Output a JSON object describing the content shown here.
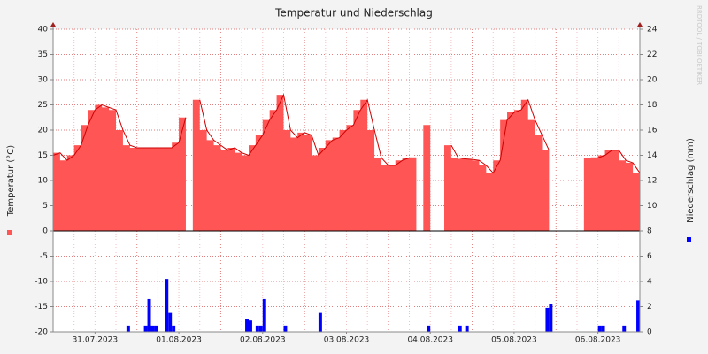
{
  "chart_data": {
    "type": "area",
    "title": "Temperatur und Niederschlag",
    "watermark": "RRDTOOL / TOBI OETIKER",
    "y_label": "Temperatur (°C)",
    "y2_label": "Niederschlag (mm)",
    "xlim": [
      0,
      168
    ],
    "xticks": [
      {
        "value": 12,
        "label": "31.07.2023"
      },
      {
        "value": 36,
        "label": "01.08.2023"
      },
      {
        "value": 60,
        "label": "02.08.2023"
      },
      {
        "value": 84,
        "label": "03.08.2023"
      },
      {
        "value": 108,
        "label": "04.08.2023"
      },
      {
        "value": 132,
        "label": "05.08.2023"
      },
      {
        "value": 156,
        "label": "06.08.2023"
      }
    ],
    "ylim": [
      -20,
      40
    ],
    "yticks": [
      -20,
      -15,
      -10,
      -5,
      0,
      5,
      10,
      15,
      20,
      25,
      30,
      35,
      40
    ],
    "y2lim": [
      0,
      24
    ],
    "y2ticks": [
      0,
      2,
      4,
      6,
      8,
      10,
      12,
      14,
      16,
      18,
      20,
      22,
      24
    ],
    "grid": true,
    "series": [
      {
        "name": "Temperatur (°C)",
        "type": "area",
        "color": "#ff5555",
        "line_color": "#cc0000",
        "x": [
          0,
          2,
          4,
          6,
          8,
          10,
          12,
          14,
          16,
          18,
          20,
          22,
          24,
          26,
          28,
          30,
          32,
          34,
          36,
          38,
          40,
          42,
          44,
          46,
          48,
          50,
          52,
          54,
          56,
          58,
          60,
          62,
          64,
          66,
          68,
          70,
          72,
          74,
          76,
          78,
          80,
          82,
          84,
          86,
          88,
          90,
          92,
          94,
          96,
          98,
          100,
          102,
          104,
          106,
          108,
          110,
          112,
          114,
          116,
          118,
          120,
          122,
          124,
          126,
          128,
          130,
          132,
          134,
          136,
          138,
          140,
          142,
          144,
          146,
          148,
          150,
          152,
          154,
          156,
          158,
          160,
          162,
          164,
          166,
          168
        ],
        "values": [
          15,
          15.5,
          14,
          15,
          17,
          21,
          24,
          25,
          24.5,
          24,
          20,
          17,
          16.5,
          16.5,
          16.5,
          16.5,
          16.5,
          16.5,
          17.5,
          22.5,
          null,
          26,
          20,
          18,
          17,
          16,
          16.5,
          15.5,
          15,
          17,
          19,
          22,
          24,
          27,
          20,
          18.5,
          19.5,
          19,
          15,
          16.5,
          18,
          18.5,
          20,
          21,
          24,
          26,
          20,
          14.5,
          13,
          13,
          14,
          14.5,
          14.5,
          null,
          21,
          null,
          null,
          17,
          14.5,
          14.3,
          14.2,
          14,
          13,
          11.5,
          14,
          22,
          23.5,
          24,
          26,
          22,
          19,
          16,
          null,
          null,
          null,
          null,
          null,
          14.5,
          14.5,
          15,
          16,
          16,
          14,
          13.5,
          11.5
        ]
      },
      {
        "name": "Niederschlag (mm)",
        "type": "bar",
        "axis": "y2",
        "color": "#0000ff",
        "x": [
          22,
          27,
          28,
          29,
          30,
          33,
          34,
          35,
          56,
          57,
          59,
          60,
          61,
          67,
          77,
          108,
          117,
          119,
          142,
          143,
          157,
          158,
          164,
          168
        ],
        "values": [
          0.5,
          0.5,
          2.6,
          0.5,
          0.5,
          4.2,
          1.5,
          0.5,
          1.0,
          0.9,
          0.5,
          0.5,
          2.6,
          0.5,
          1.5,
          0.5,
          0.5,
          0.5,
          1.9,
          2.2,
          0.5,
          0.5,
          0.5,
          2.5
        ]
      }
    ]
  }
}
